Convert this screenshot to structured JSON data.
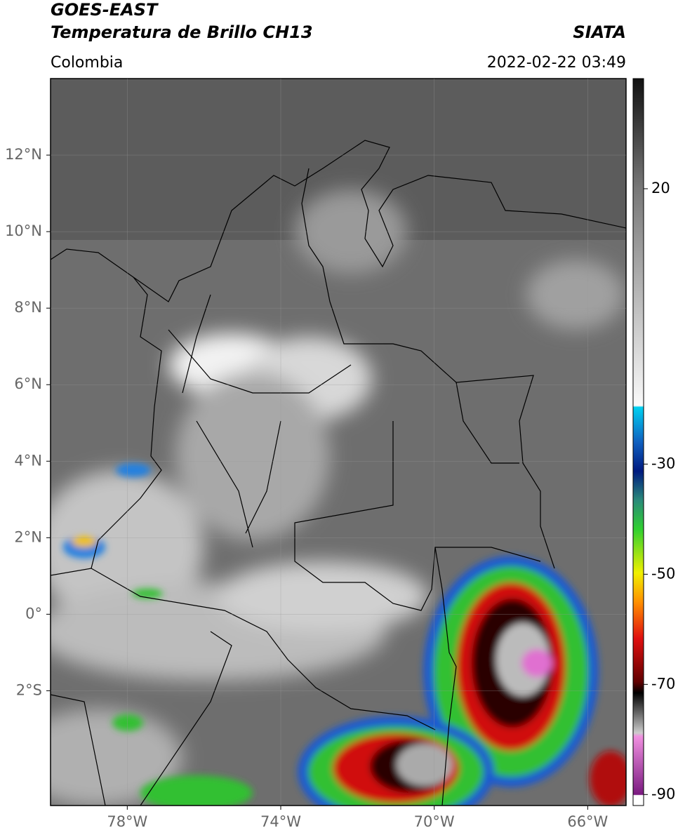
{
  "header": {
    "title_line1": "GOES-EAST",
    "title_line2": "Temperatura de Brillo CH13",
    "region": "Colombia",
    "source": "SIATA",
    "datetime": "2022-02-22 03:49"
  },
  "map": {
    "xlim": [
      -80,
      -65
    ],
    "ylim": [
      -5,
      14
    ],
    "xticks": [
      {
        "value": -78,
        "label": "78°W"
      },
      {
        "value": -74,
        "label": "74°W"
      },
      {
        "value": -70,
        "label": "70°W"
      },
      {
        "value": -66,
        "label": "66°W"
      }
    ],
    "yticks": [
      {
        "value": -2,
        "label": "2°S"
      },
      {
        "value": 0,
        "label": "0°"
      },
      {
        "value": 2,
        "label": "2°N"
      },
      {
        "value": 4,
        "label": "4°N"
      },
      {
        "value": 6,
        "label": "6°N"
      },
      {
        "value": 8,
        "label": "8°N"
      },
      {
        "value": 10,
        "label": "10°N"
      },
      {
        "value": 12,
        "label": "12°N"
      }
    ]
  },
  "colorbar": {
    "lim": [
      -92,
      40
    ],
    "ticks": [
      20,
      -30,
      -50,
      -70,
      -90
    ]
  }
}
